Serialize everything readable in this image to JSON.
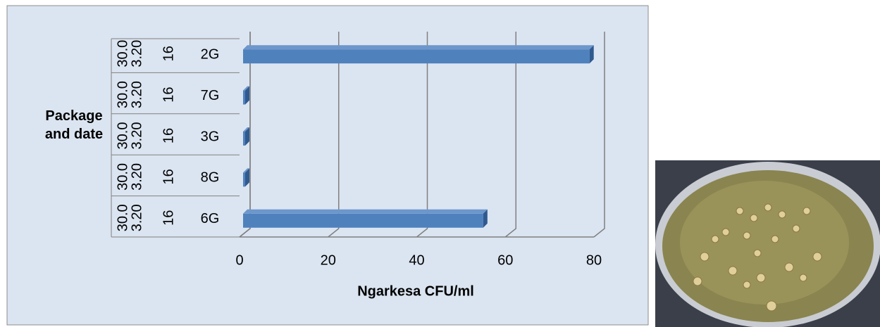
{
  "chart_data": {
    "type": "bar",
    "orientation": "horizontal",
    "x_label": "Ngarkesa CFU/ml",
    "y_label": "Package and date",
    "categories": [
      "2G",
      "7G",
      "3G",
      "8G",
      "6G"
    ],
    "category_levels": [
      [
        "16",
        "16",
        "16",
        "16",
        "16"
      ],
      [
        "3.20",
        "3.20",
        "3.20",
        "3.20",
        "3.20"
      ],
      [
        "30.0",
        "30.0",
        "30.0",
        "30.0",
        "30.0"
      ]
    ],
    "values": [
      79,
      0,
      0,
      0,
      55
    ],
    "color": "#4f81bd",
    "xlim": [
      0,
      80
    ],
    "xticks": [
      0,
      20,
      40,
      60,
      80
    ],
    "grid": true
  }
}
